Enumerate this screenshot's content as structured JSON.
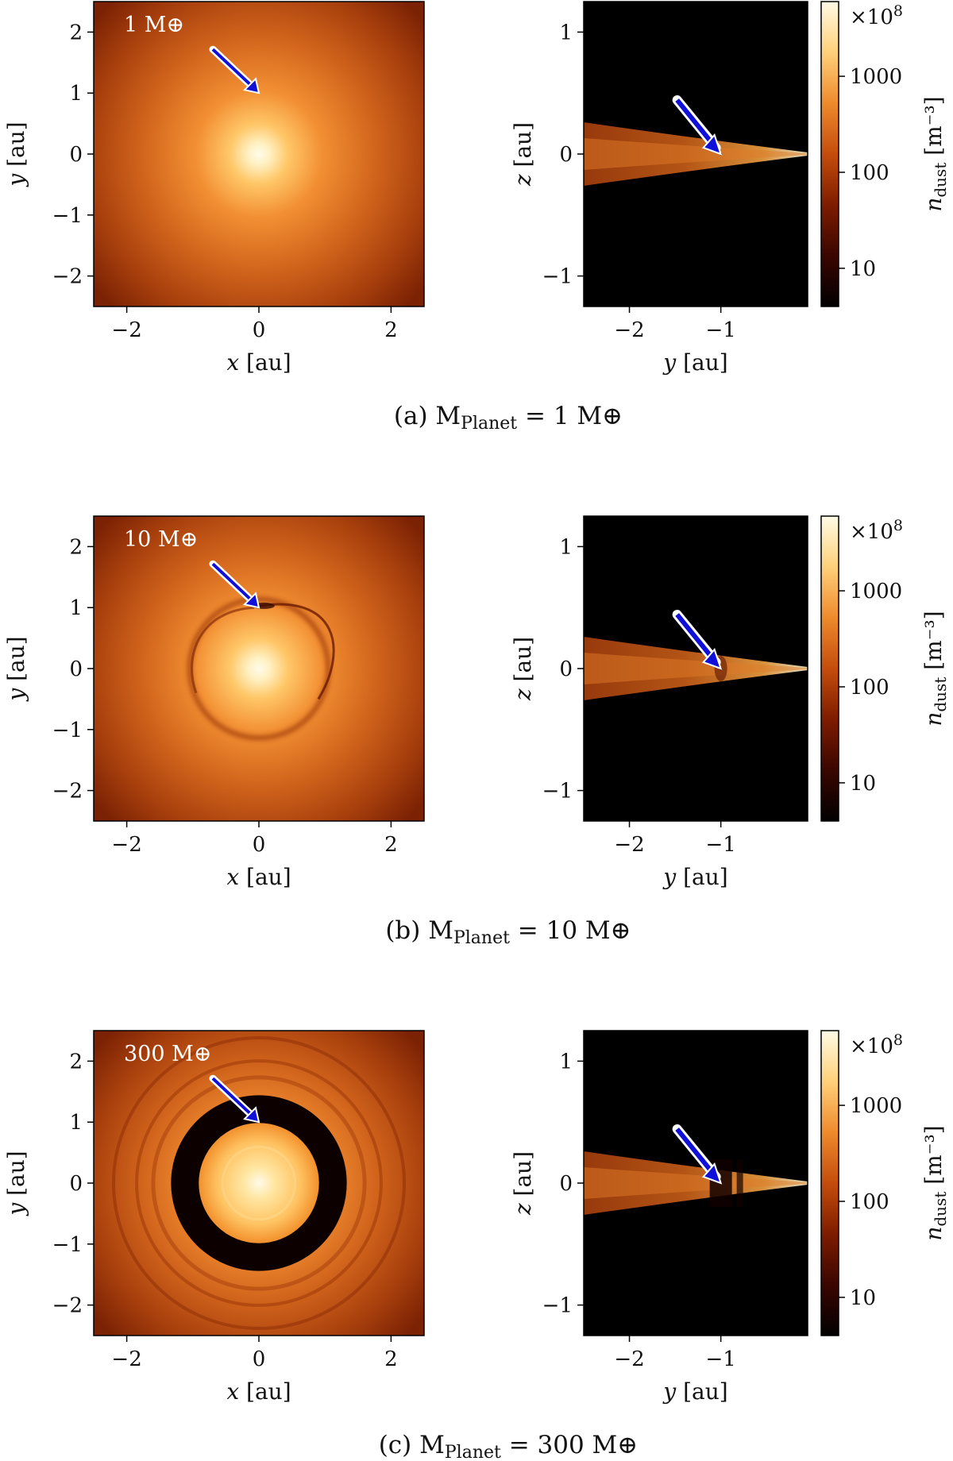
{
  "colors": {
    "bg": "#000000",
    "colormap": [
      "#000000",
      "#3a0600",
      "#7e1c00",
      "#c44d0c",
      "#ee8a2c",
      "#ffd07a",
      "#fffbe6"
    ],
    "arrow_fill": "#1010d8",
    "arrow_outline": "#ffffff"
  },
  "chart_data": [
    {
      "type": "heatmap",
      "panel": "a",
      "caption": {
        "prefix": "(a) M",
        "sub": "Planet",
        "suffix": " = 1 M⊕"
      },
      "faceon": {
        "label": "1 M⊕",
        "xlabel": "x [au]",
        "ylabel": "y [au]",
        "xlim": [
          -2.5,
          2.5
        ],
        "ylim": [
          -2.5,
          2.5
        ],
        "xticks": [
          -2,
          0,
          2
        ],
        "yticks": [
          2,
          1,
          0,
          -1,
          -2
        ],
        "xticklabels": [
          "−2",
          "0",
          "2"
        ],
        "yticklabels": [
          "2",
          "1",
          "0",
          "−1",
          "−2"
        ],
        "planet": {
          "x": 0,
          "y": 1.0
        },
        "gap": "none"
      },
      "edgeon": {
        "xlabel": "y [au]",
        "ylabel": "z [au]",
        "xlim": [
          -2.5,
          -0.05
        ],
        "ylim": [
          -1.25,
          1.25
        ],
        "xticks": [
          -2,
          -1
        ],
        "yticks": [
          1,
          0,
          -1
        ],
        "xticklabels": [
          "−2",
          "−1"
        ],
        "yticklabels": [
          "1",
          "0",
          "−1"
        ],
        "planet": {
          "y": -1.0,
          "z": 0.0
        }
      },
      "colorbar": {
        "label": "n",
        "label_sub": "dust",
        "unit": "[m⁻³]",
        "scale_note": "×10",
        "scale_exp": "8",
        "ticks": [
          10,
          100,
          1000
        ],
        "ticklabels": [
          "10",
          "100",
          "1000"
        ],
        "scale": "log",
        "range": [
          4,
          6000
        ]
      }
    },
    {
      "type": "heatmap",
      "panel": "b",
      "caption": {
        "prefix": "(b) M",
        "sub": "Planet",
        "suffix": " = 10 M⊕"
      },
      "faceon": {
        "label": "10 M⊕",
        "xlabel": "x [au]",
        "ylabel": "y [au]",
        "xlim": [
          -2.5,
          2.5
        ],
        "ylim": [
          -2.5,
          2.5
        ],
        "xticks": [
          -2,
          0,
          2
        ],
        "yticks": [
          2,
          1,
          0,
          -1,
          -2
        ],
        "xticklabels": [
          "−2",
          "0",
          "2"
        ],
        "yticklabels": [
          "2",
          "1",
          "0",
          "−1",
          "−2"
        ],
        "planet": {
          "x": 0,
          "y": 1.0
        },
        "gap": "spiral"
      },
      "edgeon": {
        "xlabel": "y [au]",
        "ylabel": "z [au]",
        "xlim": [
          -2.5,
          -0.05
        ],
        "ylim": [
          -1.25,
          1.25
        ],
        "xticks": [
          -2,
          -1
        ],
        "yticks": [
          1,
          0,
          -1
        ],
        "xticklabels": [
          "−2",
          "−1"
        ],
        "yticklabels": [
          "1",
          "0",
          "−1"
        ],
        "planet": {
          "y": -1.0,
          "z": 0.0
        }
      },
      "colorbar": {
        "label": "n",
        "label_sub": "dust",
        "unit": "[m⁻³]",
        "scale_note": "×10",
        "scale_exp": "8",
        "ticks": [
          10,
          100,
          1000
        ],
        "ticklabels": [
          "10",
          "100",
          "1000"
        ],
        "scale": "log",
        "range": [
          4,
          6000
        ]
      }
    },
    {
      "type": "heatmap",
      "panel": "c",
      "caption": {
        "prefix": "(c) M",
        "sub": "Planet",
        "suffix": " = 300 M⊕"
      },
      "faceon": {
        "label": "300 M⊕",
        "xlabel": "x [au]",
        "ylabel": "y [au]",
        "xlim": [
          -2.5,
          2.5
        ],
        "ylim": [
          -2.5,
          2.5
        ],
        "xticks": [
          -2,
          0,
          2
        ],
        "yticks": [
          2,
          1,
          0,
          -1,
          -2
        ],
        "xticklabels": [
          "−2",
          "0",
          "2"
        ],
        "yticklabels": [
          "2",
          "1",
          "0",
          "−1",
          "−2"
        ],
        "planet": {
          "x": 0,
          "y": 1.0
        },
        "gap": "deep"
      },
      "edgeon": {
        "xlabel": "y [au]",
        "ylabel": "z [au]",
        "xlim": [
          -2.5,
          -0.05
        ],
        "ylim": [
          -1.25,
          1.25
        ],
        "xticks": [
          -2,
          -1
        ],
        "yticks": [
          1,
          0,
          -1
        ],
        "xticklabels": [
          "−2",
          "−1"
        ],
        "yticklabels": [
          "1",
          "0",
          "−1"
        ],
        "planet": {
          "y": -1.0,
          "z": 0.0
        }
      },
      "colorbar": {
        "label": "n",
        "label_sub": "dust",
        "unit": "[m⁻³]",
        "scale_note": "×10",
        "scale_exp": "8",
        "ticks": [
          10,
          100,
          1000
        ],
        "ticklabels": [
          "10",
          "100",
          "1000"
        ],
        "scale": "log",
        "range": [
          4,
          6000
        ]
      }
    }
  ]
}
